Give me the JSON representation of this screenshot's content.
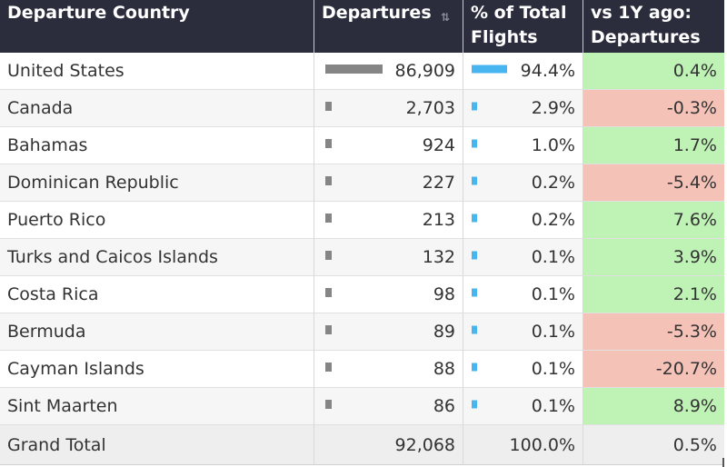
{
  "chart_data": {
    "type": "table",
    "columns": [
      "Departure Country",
      "Departures",
      "% of Total Flights",
      "vs 1Y ago: Departures"
    ],
    "rows": [
      {
        "country": "United States",
        "departures": 86909,
        "departures_label": "86,909",
        "pct": 94.4,
        "pct_label": "94.4%",
        "yoy": 0.4,
        "yoy_label": "0.4%"
      },
      {
        "country": "Canada",
        "departures": 2703,
        "departures_label": "2,703",
        "pct": 2.9,
        "pct_label": "2.9%",
        "yoy": -0.3,
        "yoy_label": "-0.3%"
      },
      {
        "country": "Bahamas",
        "departures": 924,
        "departures_label": "924",
        "pct": 1.0,
        "pct_label": "1.0%",
        "yoy": 1.7,
        "yoy_label": "1.7%"
      },
      {
        "country": "Dominican Republic",
        "departures": 227,
        "departures_label": "227",
        "pct": 0.2,
        "pct_label": "0.2%",
        "yoy": -5.4,
        "yoy_label": "-5.4%"
      },
      {
        "country": "Puerto Rico",
        "departures": 213,
        "departures_label": "213",
        "pct": 0.2,
        "pct_label": "0.2%",
        "yoy": 7.6,
        "yoy_label": "7.6%"
      },
      {
        "country": "Turks and Caicos Islands",
        "departures": 132,
        "departures_label": "132",
        "pct": 0.1,
        "pct_label": "0.1%",
        "yoy": 3.9,
        "yoy_label": "3.9%"
      },
      {
        "country": "Costa Rica",
        "departures": 98,
        "departures_label": "98",
        "pct": 0.1,
        "pct_label": "0.1%",
        "yoy": 2.1,
        "yoy_label": "2.1%"
      },
      {
        "country": "Bermuda",
        "departures": 89,
        "departures_label": "89",
        "pct": 0.1,
        "pct_label": "0.1%",
        "yoy": -5.3,
        "yoy_label": "-5.3%"
      },
      {
        "country": "Cayman Islands",
        "departures": 88,
        "departures_label": "88",
        "pct": 0.1,
        "pct_label": "0.1%",
        "yoy": -20.7,
        "yoy_label": "-20.7%"
      },
      {
        "country": "Sint Maarten",
        "departures": 86,
        "departures_label": "86",
        "pct": 0.1,
        "pct_label": "0.1%",
        "yoy": 8.9,
        "yoy_label": "8.9%"
      }
    ],
    "total": {
      "label": "Grand Total",
      "departures": 92068,
      "departures_label": "92,068",
      "pct": 100.0,
      "pct_label": "100.0%",
      "yoy": 0.5,
      "yoy_label": "0.5%"
    }
  },
  "colors": {
    "header_bg": "#2b2d3d",
    "departures_bar": "#858585",
    "pct_bar": "#47b5ef",
    "positive_change": "#bff3b6",
    "negative_change": "#f5c2b8"
  },
  "icons": {
    "sort": "sort-icon"
  }
}
